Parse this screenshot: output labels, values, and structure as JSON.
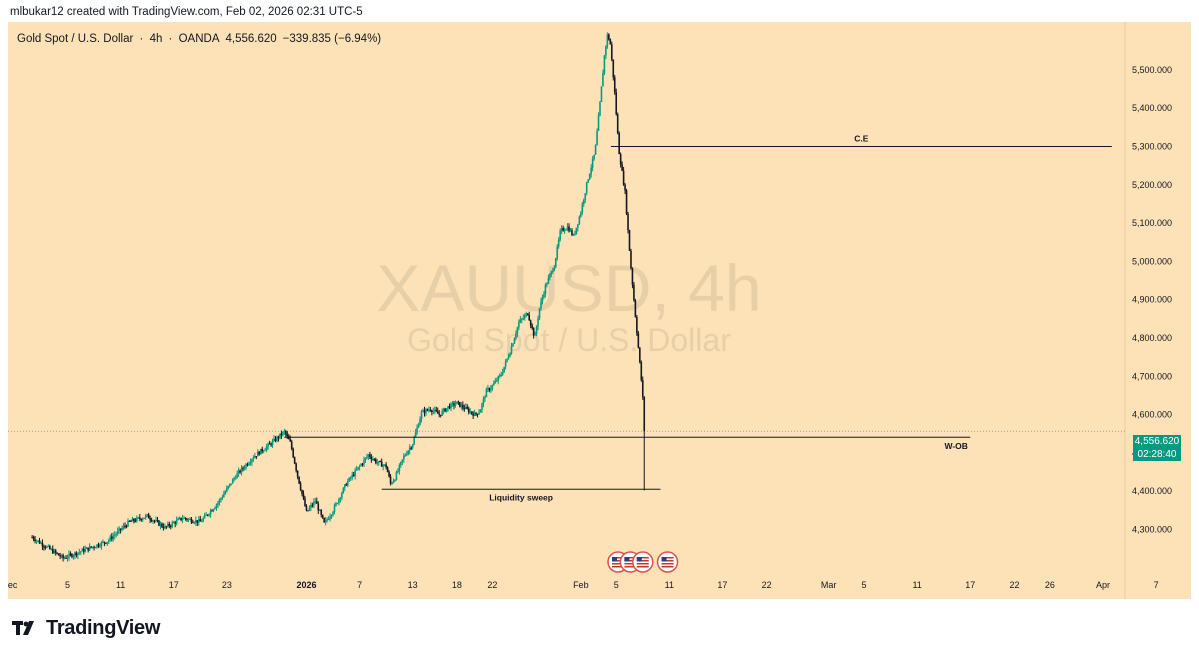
{
  "header": {
    "credit": "mlbukar12 created with TradingView.com, Feb 02, 2026 02:31 UTC-5"
  },
  "legend": {
    "description": "Gold Spot / U.S. Dollar",
    "interval": "4h",
    "exchange": "OANDA",
    "price": "4,556.620",
    "change": "−339.835 (−6.94%)"
  },
  "watermark": {
    "symbol": "XAUUSD, 4h",
    "description": "Gold Spot / U.S. Dollar"
  },
  "price_tag": {
    "price": "4,556.620",
    "countdown": "02:28:40",
    "color": "#089981"
  },
  "footer": {
    "brand": "TradingView"
  },
  "colors": {
    "background": "#fde2b8",
    "up": "#089981",
    "wick": "#131722",
    "axis_text": "#131722"
  },
  "chart_data": {
    "type": "candlestick",
    "symbol": "XAUUSD",
    "timeframe": "4h",
    "ylim": [
      4210,
      5625
    ],
    "y_ticks": [
      4300,
      4400,
      4500,
      4600,
      4700,
      4800,
      4900,
      5000,
      5100,
      5200,
      5300,
      5400,
      5500
    ],
    "y_tick_labels": [
      "4,300.000",
      "4,400.000",
      "4,500.000",
      "4,600.000",
      "4,700.000",
      "4,800.000",
      "4,900.000",
      "5,000.000",
      "5,100.000",
      "5,200.000",
      "5,300.000",
      "5,400.000",
      "5,500.000"
    ],
    "x_tick_labels": [
      {
        "label": "ec",
        "day": -1.2,
        "bold": false
      },
      {
        "label": "5",
        "day": 5,
        "bold": false
      },
      {
        "label": "11",
        "day": 11,
        "bold": false
      },
      {
        "label": "17",
        "day": 17,
        "bold": false
      },
      {
        "label": "23",
        "day": 23,
        "bold": false
      },
      {
        "label": "2026",
        "day": 32,
        "bold": true
      },
      {
        "label": "7",
        "day": 38,
        "bold": false
      },
      {
        "label": "13",
        "day": 44,
        "bold": false
      },
      {
        "label": "18",
        "day": 49,
        "bold": false
      },
      {
        "label": "22",
        "day": 53,
        "bold": false
      },
      {
        "label": "Feb",
        "day": 63,
        "bold": false
      },
      {
        "label": "5",
        "day": 67,
        "bold": false
      },
      {
        "label": "11",
        "day": 73,
        "bold": false
      },
      {
        "label": "17",
        "day": 79,
        "bold": false
      },
      {
        "label": "22",
        "day": 84,
        "bold": false
      },
      {
        "label": "Mar",
        "day": 91,
        "bold": false
      },
      {
        "label": "5",
        "day": 95,
        "bold": false
      },
      {
        "label": "11",
        "day": 101,
        "bold": false
      },
      {
        "label": "17",
        "day": 107,
        "bold": false
      },
      {
        "label": "22",
        "day": 112,
        "bold": false
      },
      {
        "label": "26",
        "day": 116,
        "bold": false
      },
      {
        "label": "Apr",
        "day": 122,
        "bold": false
      },
      {
        "label": "7",
        "day": 128,
        "bold": false
      }
    ],
    "waypoints": [
      [
        1,
        4280
      ],
      [
        4.5,
        4225
      ],
      [
        9.5,
        4270
      ],
      [
        12,
        4320
      ],
      [
        14,
        4335
      ],
      [
        16,
        4305
      ],
      [
        18,
        4330
      ],
      [
        20,
        4320
      ],
      [
        22,
        4370
      ],
      [
        24,
        4440
      ],
      [
        26,
        4490
      ],
      [
        28,
        4525
      ],
      [
        29.5,
        4555
      ],
      [
        30.2,
        4525
      ],
      [
        31,
        4440
      ],
      [
        32,
        4345
      ],
      [
        33,
        4375
      ],
      [
        34,
        4315
      ],
      [
        35,
        4350
      ],
      [
        36.5,
        4420
      ],
      [
        38,
        4465
      ],
      [
        39,
        4495
      ],
      [
        40,
        4475
      ],
      [
        41,
        4465
      ],
      [
        41.5,
        4420
      ],
      [
        42,
        4435
      ],
      [
        43,
        4490
      ],
      [
        44,
        4525
      ],
      [
        45,
        4605
      ],
      [
        46,
        4615
      ],
      [
        47,
        4600
      ],
      [
        48,
        4620
      ],
      [
        49,
        4630
      ],
      [
        50,
        4615
      ],
      [
        51,
        4600
      ],
      [
        51.6,
        4610
      ],
      [
        52.3,
        4660
      ],
      [
        53,
        4675
      ],
      [
        54,
        4705
      ],
      [
        55,
        4765
      ],
      [
        56,
        4840
      ],
      [
        57,
        4865
      ],
      [
        57.8,
        4800
      ],
      [
        58.3,
        4875
      ],
      [
        59,
        4935
      ],
      [
        60,
        4990
      ],
      [
        60.7,
        5080
      ],
      [
        61.5,
        5090
      ],
      [
        62.2,
        5065
      ],
      [
        63,
        5130
      ],
      [
        63.8,
        5215
      ],
      [
        64.6,
        5285
      ],
      [
        65.2,
        5420
      ],
      [
        65.7,
        5545
      ],
      [
        66.0,
        5590
      ],
      [
        66.3,
        5575
      ],
      [
        66.8,
        5450
      ],
      [
        67.3,
        5290
      ],
      [
        68.0,
        5180
      ],
      [
        68.6,
        5000
      ],
      [
        69.2,
        4850
      ],
      [
        69.8,
        4700
      ],
      [
        70.3,
        4556.62
      ]
    ],
    "last_price": 4556.62,
    "annotations": [
      {
        "label": "C.E",
        "price": 5300,
        "x_start_day": 66.4,
        "x_end_day": 123
      },
      {
        "label": "W-OB",
        "price": 4541,
        "x_start_day": 29.5,
        "x_end_day": 107
      },
      {
        "label": "Liquidity sweep",
        "price": 4405,
        "x_start_day": 40.5,
        "x_end_day": 72
      }
    ],
    "event_markers": {
      "count": 4,
      "days": [
        67.2,
        68.6,
        70.0,
        72.8
      ],
      "icon": "us-flag-icon"
    }
  }
}
